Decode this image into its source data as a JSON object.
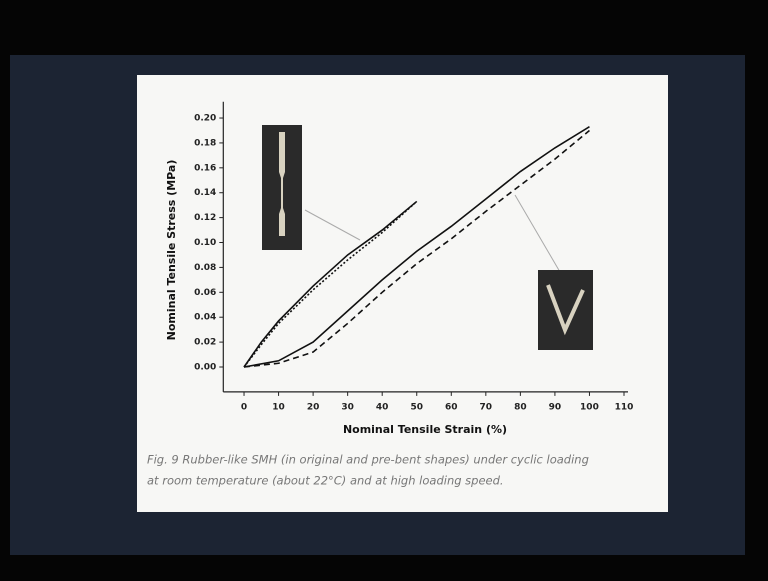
{
  "chart_data": {
    "type": "line",
    "x_label": "Nominal Tensile Strain (%)",
    "y_label": "Nominal Tensile Stress (MPa)",
    "caption_lines": [
      "Fig. 9 Rubber-like SMH (in original and pre-bent shapes) under cyclic loading",
      "at room temperature (about 22°C) and at high loading speed."
    ],
    "xlim": [
      -6,
      110
    ],
    "ylim": [
      -0.02,
      0.205
    ],
    "xticks": [
      0,
      10,
      20,
      30,
      40,
      50,
      60,
      70,
      80,
      90,
      100,
      110
    ],
    "yticks": [
      {
        "value": 0,
        "label": "0.00"
      },
      {
        "value": 0.02,
        "label": "0.02"
      },
      {
        "value": 0.04,
        "label": "0.04"
      },
      {
        "value": 0.06,
        "label": "0.06"
      },
      {
        "value": 0.08,
        "label": "0.08"
      },
      {
        "value": 0.1,
        "label": "0.10"
      },
      {
        "value": 0.12,
        "label": "0.12"
      },
      {
        "value": 0.14,
        "label": "0.14"
      },
      {
        "value": 0.16,
        "label": "0.16"
      },
      {
        "value": 0.18,
        "label": "0.18"
      },
      {
        "value": 0.2,
        "label": "0.20"
      }
    ],
    "grid": false,
    "series": [
      {
        "color": "#111111",
        "dash": "solid",
        "x": [
          0,
          5,
          10,
          20,
          30,
          40,
          50
        ],
        "values": [
          0,
          0.02,
          0.037,
          0.065,
          0.09,
          0.11,
          0.133
        ]
      },
      {
        "color": "#111111",
        "dash": "dotted",
        "x": [
          0,
          5,
          10,
          20,
          30,
          40,
          50
        ],
        "values": [
          0,
          0.018,
          0.035,
          0.062,
          0.086,
          0.108,
          0.133
        ]
      },
      {
        "color": "#111111",
        "dash": "solid",
        "x": [
          0,
          10,
          20,
          30,
          40,
          50,
          60,
          70,
          80,
          90,
          100
        ],
        "values": [
          0,
          0.005,
          0.02,
          0.045,
          0.07,
          0.093,
          0.113,
          0.135,
          0.157,
          0.176,
          0.193
        ]
      },
      {
        "color": "#111111",
        "dash": "dashed",
        "x": [
          0,
          10,
          20,
          30,
          40,
          50,
          60,
          70,
          80,
          90,
          100
        ],
        "values": [
          0,
          0.003,
          0.012,
          0.035,
          0.06,
          0.083,
          0.103,
          0.125,
          0.146,
          0.167,
          0.19
        ]
      }
    ]
  }
}
